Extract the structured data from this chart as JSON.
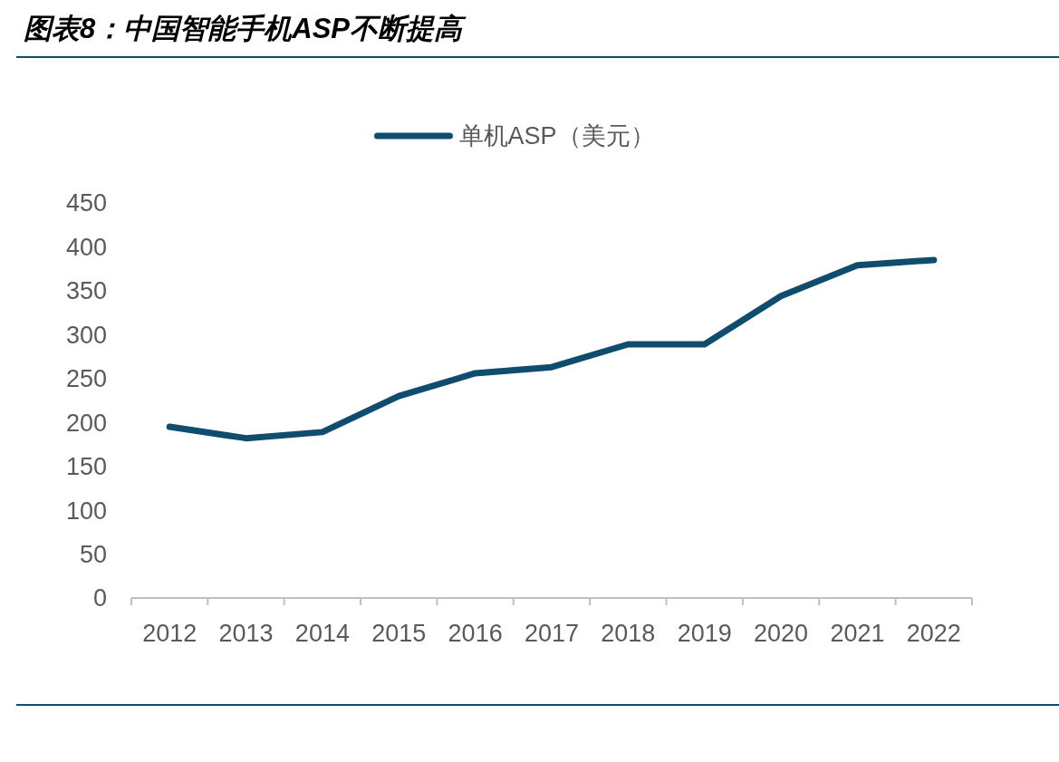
{
  "chart_data": {
    "type": "line",
    "title": "图表8：中国智能手机ASP不断提高",
    "categories": [
      "2012",
      "2013",
      "2014",
      "2015",
      "2016",
      "2017",
      "2018",
      "2019",
      "2020",
      "2021",
      "2022"
    ],
    "series": [
      {
        "name": "单机ASP（美元）",
        "color": "#0f4c6e",
        "values": [
          195,
          182,
          189,
          230,
          256,
          263,
          289,
          289,
          344,
          379,
          385
        ]
      }
    ],
    "ylim": [
      0,
      450
    ],
    "yticks": [
      0,
      50,
      100,
      150,
      200,
      250,
      300,
      350,
      400,
      450
    ],
    "grid": false,
    "legend": "top",
    "marker": "none",
    "line_style": "solid"
  }
}
